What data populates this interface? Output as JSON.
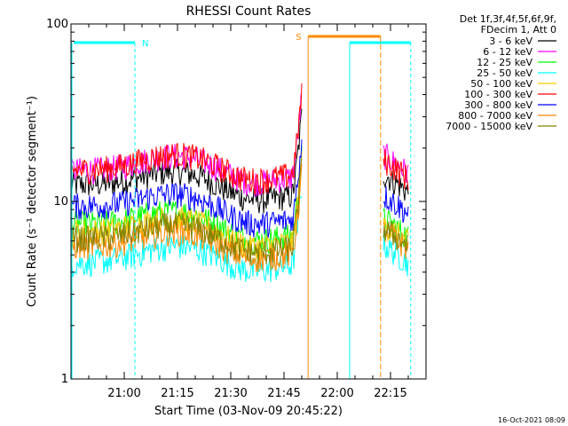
{
  "chart_data": {
    "type": "line",
    "title": "RHESSI Count Rates",
    "xlabel": "Start Time (03-Nov-09 20:45:22)",
    "ylabel": "Count Rate (s⁻¹ detector segment⁻¹)",
    "yscale": "log",
    "ylim": [
      1,
      100
    ],
    "y_ticks": [
      "1",
      "10",
      "100"
    ],
    "x_ticks": [
      "21:00",
      "21:15",
      "21:30",
      "21:45",
      "22:00",
      "22:15"
    ],
    "grid": false,
    "legend_position": "top-right",
    "legend_header": [
      "Det 1f,3f,4f,5f,6f,9f,",
      "FDecim 1, Att 0"
    ],
    "series": [
      {
        "name": "3 - 6 keV",
        "color": "#000000",
        "level_start": 12.5,
        "level_mid": 11.0,
        "level_end": 12.5
      },
      {
        "name": "6 - 12 keV",
        "color": "#ff00ff",
        "level_start": 15.0,
        "level_mid": 14.0,
        "level_end": 16.0
      },
      {
        "name": "12 - 25 keV",
        "color": "#00ff00",
        "level_start": 7.5,
        "level_mid": 6.5,
        "level_end": 7.0
      },
      {
        "name": "25 - 50 keV",
        "color": "#00ffff",
        "level_start": 4.5,
        "level_mid": 4.5,
        "level_end": 5.0
      },
      {
        "name": "50 - 100 keV",
        "color": "#ffcc00",
        "level_start": 6.8,
        "level_mid": 6.0,
        "level_end": 6.5
      },
      {
        "name": "100 - 300 keV",
        "color": "#ff0000",
        "level_start": 15.0,
        "level_mid": 14.5,
        "level_end": 15.0
      },
      {
        "name": "300 - 800 keV",
        "color": "#0000ff",
        "level_start": 9.5,
        "level_mid": 8.0,
        "level_end": 9.5
      },
      {
        "name": "800 - 7000 keV",
        "color": "#ff8800",
        "level_start": 5.6,
        "level_mid": 5.2,
        "level_end": 6.0
      },
      {
        "name": "7000 - 15000 keV",
        "color": "#808000",
        "level_start": 6.2,
        "level_mid": 5.6,
        "level_end": 6.2
      }
    ],
    "annotations": [
      {
        "text": "N",
        "color": "#00ffff"
      },
      {
        "text": "S",
        "color": "#ff8800"
      }
    ],
    "timestamp": "16-Oct-2021 08:09"
  }
}
